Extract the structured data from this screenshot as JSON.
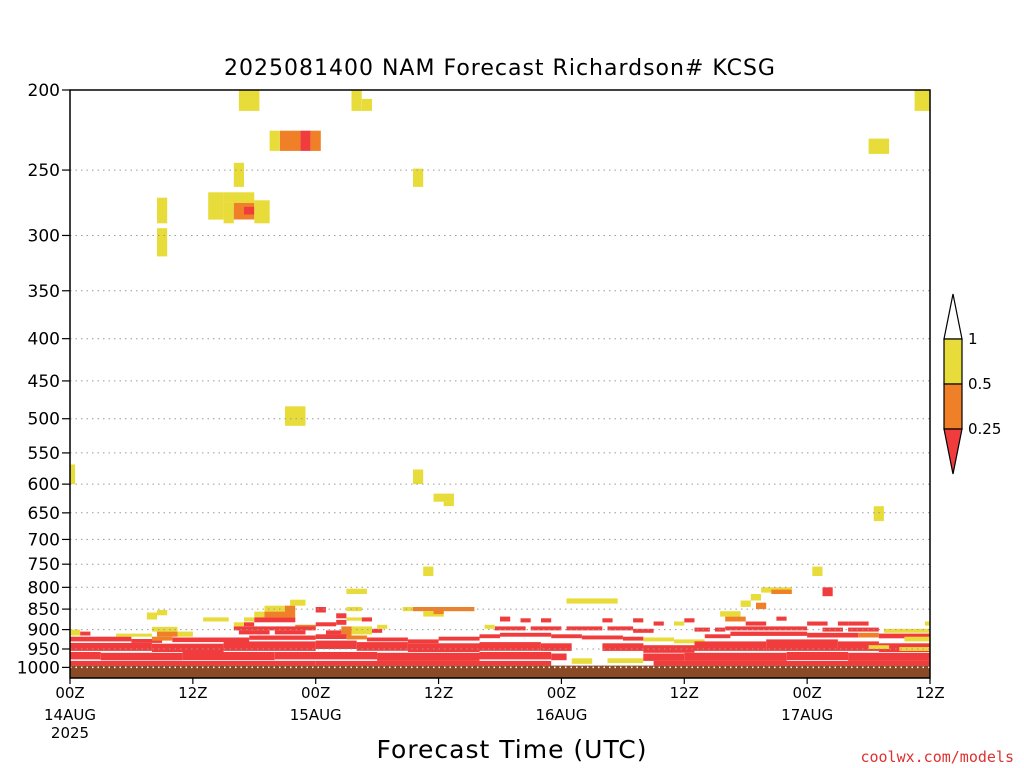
{
  "chart_data": {
    "type": "heatmap",
    "title": "2025081400 NAM Forecast Richardson# KCSG",
    "xlabel": "Forecast Time (UTC)",
    "ylabel": "",
    "x_unit": "forecast hours",
    "xlim": [
      0,
      84
    ],
    "y_unit": "hPa",
    "ylim": [
      1030,
      200
    ],
    "y_scale": "log",
    "grid": true,
    "yticks": [
      200,
      250,
      300,
      350,
      400,
      450,
      500,
      550,
      600,
      650,
      700,
      750,
      800,
      850,
      900,
      950,
      1000
    ],
    "xticks": [
      {
        "x": 0,
        "label": "00Z",
        "date": "14AUG",
        "year": "2025"
      },
      {
        "x": 12,
        "label": "12Z"
      },
      {
        "x": 24,
        "label": "00Z",
        "date": "15AUG"
      },
      {
        "x": 36,
        "label": "12Z"
      },
      {
        "x": 48,
        "label": "00Z",
        "date": "16AUG"
      },
      {
        "x": 60,
        "label": "12Z"
      },
      {
        "x": 72,
        "label": "00Z",
        "date": "17AUG"
      },
      {
        "x": 84,
        "label": "12Z"
      }
    ],
    "colorbar": {
      "levels": [
        "1",
        "0.5",
        "0.25"
      ],
      "bins": [
        {
          "range": "> 1",
          "color": "#ffffff"
        },
        {
          "range": "0.5 - 1",
          "color": "#e8dc3a"
        },
        {
          "range": "0.25 - 0.5",
          "color": "#f08028"
        },
        {
          "range": "< 0.25",
          "color": "#f03c3c"
        }
      ]
    },
    "ground": {
      "p_top": 995,
      "p_bottom": 1030,
      "color": "#8b4a26"
    },
    "cells": [
      {
        "t0": 16.5,
        "t1": 18.5,
        "p0": 200,
        "p1": 212,
        "v": "y"
      },
      {
        "t0": 27.5,
        "t1": 28.5,
        "p0": 200,
        "p1": 212,
        "v": "y"
      },
      {
        "t0": 28.5,
        "t1": 29.5,
        "p0": 205,
        "p1": 212,
        "v": "y"
      },
      {
        "t0": 82.5,
        "t1": 84,
        "p0": 200,
        "p1": 212,
        "v": "y"
      },
      {
        "t0": 19.5,
        "t1": 20.5,
        "p0": 224,
        "p1": 237,
        "v": "y"
      },
      {
        "t0": 20.5,
        "t1": 22.5,
        "p0": 224,
        "p1": 237,
        "v": "o"
      },
      {
        "t0": 22.5,
        "t1": 23.5,
        "p0": 224,
        "p1": 237,
        "v": "r"
      },
      {
        "t0": 23.5,
        "t1": 24.5,
        "p0": 224,
        "p1": 237,
        "v": "o"
      },
      {
        "t0": 78,
        "t1": 80,
        "p0": 229,
        "p1": 239,
        "v": "y"
      },
      {
        "t0": 16,
        "t1": 17,
        "p0": 245,
        "p1": 262,
        "v": "y"
      },
      {
        "t0": 33.5,
        "t1": 34.5,
        "p0": 249,
        "p1": 262,
        "v": "y"
      },
      {
        "t0": 8.5,
        "t1": 9.5,
        "p0": 270,
        "p1": 290,
        "v": "y"
      },
      {
        "t0": 13.5,
        "t1": 15,
        "p0": 266,
        "p1": 287,
        "v": "y"
      },
      {
        "t0": 15,
        "t1": 18,
        "p0": 266,
        "p1": 274,
        "v": "y"
      },
      {
        "t0": 15,
        "t1": 16,
        "p0": 274,
        "p1": 290,
        "v": "y"
      },
      {
        "t0": 16,
        "t1": 18,
        "p0": 274,
        "p1": 287,
        "v": "o"
      },
      {
        "t0": 17,
        "t1": 18,
        "p0": 277,
        "p1": 283,
        "v": "r"
      },
      {
        "t0": 18,
        "t1": 19.5,
        "p0": 272,
        "p1": 290,
        "v": "y"
      },
      {
        "t0": 8.5,
        "t1": 9.5,
        "p0": 294,
        "p1": 318,
        "v": "y"
      },
      {
        "t0": 21,
        "t1": 23,
        "p0": 483,
        "p1": 510,
        "v": "y"
      },
      {
        "t0": 0,
        "t1": 0.5,
        "p0": 568,
        "p1": 600,
        "v": "y"
      },
      {
        "t0": 33.5,
        "t1": 34.5,
        "p0": 576,
        "p1": 600,
        "v": "y"
      },
      {
        "t0": 35.5,
        "t1": 37.5,
        "p0": 616,
        "p1": 630,
        "v": "y"
      },
      {
        "t0": 36.5,
        "t1": 37.5,
        "p0": 630,
        "p1": 638,
        "v": "y"
      },
      {
        "t0": 78.5,
        "t1": 79.5,
        "p0": 638,
        "p1": 665,
        "v": "y"
      },
      {
        "t0": 34.5,
        "t1": 35.5,
        "p0": 755,
        "p1": 775,
        "v": "y"
      },
      {
        "t0": 72.5,
        "t1": 73.5,
        "p0": 755,
        "p1": 775,
        "v": "y"
      },
      {
        "t0": 73.5,
        "t1": 74.5,
        "p0": 800,
        "p1": 820,
        "v": "r"
      },
      {
        "t0": 27,
        "t1": 29,
        "p0": 803,
        "p1": 815,
        "v": "y"
      },
      {
        "t0": 48.5,
        "t1": 53.5,
        "p0": 825,
        "p1": 837,
        "v": "y"
      },
      {
        "t0": 67.5,
        "t1": 70.5,
        "p0": 800,
        "p1": 812,
        "v": "y"
      },
      {
        "t0": 68.5,
        "t1": 70.5,
        "p0": 805,
        "p1": 815,
        "v": "o"
      },
      {
        "t0": 66.5,
        "t1": 67.5,
        "p0": 815,
        "p1": 830,
        "v": "y"
      },
      {
        "t0": 65.5,
        "t1": 66.5,
        "p0": 830,
        "p1": 845,
        "v": "y"
      },
      {
        "t0": 67,
        "t1": 68,
        "p0": 835,
        "p1": 850,
        "v": "o"
      },
      {
        "t0": 21.5,
        "t1": 23,
        "p0": 828,
        "p1": 842,
        "v": "y"
      },
      {
        "t0": 19,
        "t1": 21.5,
        "p0": 842,
        "p1": 856,
        "v": "y"
      },
      {
        "t0": 21,
        "t1": 22,
        "p0": 842,
        "p1": 870,
        "v": "o"
      },
      {
        "t0": 18,
        "t1": 19,
        "p0": 856,
        "p1": 870,
        "v": "y"
      },
      {
        "t0": 19,
        "t1": 21,
        "p0": 856,
        "p1": 870,
        "v": "o"
      },
      {
        "t0": 17,
        "t1": 18,
        "p0": 870,
        "p1": 880,
        "v": "y"
      },
      {
        "t0": 18,
        "t1": 22,
        "p0": 870,
        "p1": 882,
        "v": "r"
      },
      {
        "t0": 27,
        "t1": 28.5,
        "p0": 845,
        "p1": 855,
        "v": "y"
      },
      {
        "t0": 24,
        "t1": 25,
        "p0": 845,
        "p1": 858,
        "v": "r"
      },
      {
        "t0": 26,
        "t1": 27,
        "p0": 860,
        "p1": 872,
        "v": "r"
      },
      {
        "t0": 7.5,
        "t1": 8.5,
        "p0": 858,
        "p1": 875,
        "v": "y"
      },
      {
        "t0": 8.5,
        "t1": 9.5,
        "p0": 852,
        "p1": 865,
        "v": "y"
      },
      {
        "t0": 32.5,
        "t1": 33.5,
        "p0": 845,
        "p1": 855,
        "v": "y"
      },
      {
        "t0": 33.5,
        "t1": 39.5,
        "p0": 845,
        "p1": 855,
        "v": "o"
      },
      {
        "t0": 34.5,
        "t1": 36.5,
        "p0": 855,
        "p1": 868,
        "v": "y"
      },
      {
        "t0": 35.5,
        "t1": 36.5,
        "p0": 852,
        "p1": 862,
        "v": "o"
      },
      {
        "t0": 63.5,
        "t1": 65.5,
        "p0": 855,
        "p1": 868,
        "v": "y"
      },
      {
        "t0": 64,
        "t1": 66,
        "p0": 868,
        "p1": 880,
        "v": "o"
      },
      {
        "t0": 13,
        "t1": 15.5,
        "p0": 870,
        "p1": 880,
        "v": "y"
      },
      {
        "t0": 16,
        "t1": 17,
        "p0": 882,
        "p1": 892,
        "v": "y"
      },
      {
        "t0": 17,
        "t1": 18,
        "p0": 882,
        "p1": 892,
        "v": "r"
      },
      {
        "t0": 22,
        "t1": 24,
        "p0": 888,
        "p1": 898,
        "v": "o"
      },
      {
        "t0": 24,
        "t1": 26,
        "p0": 882,
        "p1": 892,
        "v": "r"
      },
      {
        "t0": 26,
        "t1": 27,
        "p0": 876,
        "p1": 888,
        "v": "r"
      },
      {
        "t0": 27,
        "t1": 28.5,
        "p0": 870,
        "p1": 878,
        "v": "y"
      },
      {
        "t0": 28.5,
        "t1": 29.5,
        "p0": 870,
        "p1": 880,
        "v": "r"
      },
      {
        "t0": 42,
        "t1": 43,
        "p0": 868,
        "p1": 880,
        "v": "r"
      },
      {
        "t0": 44,
        "t1": 45,
        "p0": 872,
        "p1": 882,
        "v": "r"
      },
      {
        "t0": 46,
        "t1": 47,
        "p0": 872,
        "p1": 882,
        "v": "r"
      },
      {
        "t0": 52,
        "t1": 53,
        "p0": 872,
        "p1": 882,
        "v": "r"
      },
      {
        "t0": 55,
        "t1": 56,
        "p0": 872,
        "p1": 882,
        "v": "r"
      },
      {
        "t0": 57,
        "t1": 58,
        "p0": 880,
        "p1": 890,
        "v": "r"
      },
      {
        "t0": 59,
        "t1": 60,
        "p0": 880,
        "p1": 890,
        "v": "y"
      },
      {
        "t0": 60,
        "t1": 61,
        "p0": 872,
        "p1": 882,
        "v": "r"
      },
      {
        "t0": 66,
        "t1": 68,
        "p0": 880,
        "p1": 890,
        "v": "r"
      },
      {
        "t0": 69,
        "t1": 70,
        "p0": 868,
        "p1": 878,
        "v": "r"
      },
      {
        "t0": 72,
        "t1": 74,
        "p0": 880,
        "p1": 890,
        "v": "r"
      },
      {
        "t0": 75,
        "t1": 76,
        "p0": 880,
        "p1": 890,
        "v": "r"
      },
      {
        "t0": 76,
        "t1": 78,
        "p0": 880,
        "p1": 890,
        "v": "r"
      },
      {
        "t0": 83.5,
        "t1": 84,
        "p0": 880,
        "p1": 890,
        "v": "y"
      },
      {
        "t0": 0,
        "t1": 1,
        "p0": 900,
        "p1": 915,
        "v": "y"
      },
      {
        "t0": 1,
        "t1": 2,
        "p0": 905,
        "p1": 915,
        "v": "r"
      },
      {
        "t0": 8,
        "t1": 10.5,
        "p0": 893,
        "p1": 905,
        "v": "y"
      },
      {
        "t0": 8.5,
        "t1": 10.5,
        "p0": 905,
        "p1": 918,
        "v": "o"
      },
      {
        "t0": 10.5,
        "t1": 12,
        "p0": 905,
        "p1": 918,
        "v": "y"
      },
      {
        "t0": 4.5,
        "t1": 8,
        "p0": 910,
        "p1": 918,
        "v": "y"
      },
      {
        "t0": 16,
        "t1": 24,
        "p0": 892,
        "p1": 902,
        "v": "r"
      },
      {
        "t0": 16.5,
        "t1": 19.5,
        "p0": 902,
        "p1": 912,
        "v": "r"
      },
      {
        "t0": 20,
        "t1": 23,
        "p0": 902,
        "p1": 912,
        "v": "r"
      },
      {
        "t0": 25,
        "t1": 26.5,
        "p0": 902,
        "p1": 912,
        "v": "r"
      },
      {
        "t0": 26.5,
        "t1": 27.5,
        "p0": 892,
        "p1": 918,
        "v": "o"
      },
      {
        "t0": 27.5,
        "t1": 29.5,
        "p0": 892,
        "p1": 912,
        "v": "y"
      },
      {
        "t0": 29.5,
        "t1": 30.5,
        "p0": 898,
        "p1": 908,
        "v": "r"
      },
      {
        "t0": 30,
        "t1": 31,
        "p0": 888,
        "p1": 898,
        "v": "y"
      },
      {
        "t0": 40.5,
        "t1": 41.5,
        "p0": 888,
        "p1": 898,
        "v": "y"
      },
      {
        "t0": 41.5,
        "t1": 44.5,
        "p0": 892,
        "p1": 902,
        "v": "r"
      },
      {
        "t0": 45,
        "t1": 48,
        "p0": 892,
        "p1": 902,
        "v": "r"
      },
      {
        "t0": 48.5,
        "t1": 52,
        "p0": 892,
        "p1": 902,
        "v": "r"
      },
      {
        "t0": 52.5,
        "t1": 55,
        "p0": 892,
        "p1": 902,
        "v": "r"
      },
      {
        "t0": 55,
        "t1": 57,
        "p0": 898,
        "p1": 908,
        "v": "r"
      },
      {
        "t0": 61,
        "t1": 62.5,
        "p0": 895,
        "p1": 905,
        "v": "r"
      },
      {
        "t0": 63,
        "t1": 64,
        "p0": 895,
        "p1": 905,
        "v": "r"
      },
      {
        "t0": 64,
        "t1": 72,
        "p0": 892,
        "p1": 902,
        "v": "r"
      },
      {
        "t0": 73.5,
        "t1": 75.5,
        "p0": 895,
        "p1": 905,
        "v": "r"
      },
      {
        "t0": 76,
        "t1": 79,
        "p0": 895,
        "p1": 905,
        "v": "r"
      },
      {
        "t0": 79.5,
        "t1": 84,
        "p0": 898,
        "p1": 908,
        "v": "y"
      },
      {
        "t0": 0,
        "t1": 6,
        "p0": 918,
        "p1": 930,
        "v": "r"
      },
      {
        "t0": 6,
        "t1": 9,
        "p0": 924,
        "p1": 934,
        "v": "r"
      },
      {
        "t0": 8,
        "t1": 10,
        "p0": 918,
        "p1": 928,
        "v": "o"
      },
      {
        "t0": 10,
        "t1": 17.5,
        "p0": 920,
        "p1": 932,
        "v": "r"
      },
      {
        "t0": 17.5,
        "t1": 24,
        "p0": 915,
        "p1": 926,
        "v": "r"
      },
      {
        "t0": 24,
        "t1": 27,
        "p0": 912,
        "p1": 924,
        "v": "r"
      },
      {
        "t0": 27,
        "t1": 29,
        "p0": 915,
        "p1": 925,
        "v": "o"
      },
      {
        "t0": 29,
        "t1": 33,
        "p0": 920,
        "p1": 930,
        "v": "r"
      },
      {
        "t0": 33,
        "t1": 36,
        "p0": 925,
        "p1": 935,
        "v": "r"
      },
      {
        "t0": 36,
        "t1": 40,
        "p0": 918,
        "p1": 928,
        "v": "r"
      },
      {
        "t0": 40,
        "t1": 42,
        "p0": 912,
        "p1": 922,
        "v": "r"
      },
      {
        "t0": 42,
        "t1": 47,
        "p0": 908,
        "p1": 918,
        "v": "r"
      },
      {
        "t0": 47,
        "t1": 50,
        "p0": 912,
        "p1": 922,
        "v": "r"
      },
      {
        "t0": 50,
        "t1": 54,
        "p0": 915,
        "p1": 925,
        "v": "r"
      },
      {
        "t0": 54,
        "t1": 56,
        "p0": 918,
        "p1": 928,
        "v": "r"
      },
      {
        "t0": 56,
        "t1": 59,
        "p0": 920,
        "p1": 930,
        "v": "y"
      },
      {
        "t0": 59,
        "t1": 62,
        "p0": 925,
        "p1": 935,
        "v": "y"
      },
      {
        "t0": 62,
        "t1": 64.5,
        "p0": 912,
        "p1": 922,
        "v": "r"
      },
      {
        "t0": 64.5,
        "t1": 72,
        "p0": 905,
        "p1": 916,
        "v": "r"
      },
      {
        "t0": 72,
        "t1": 77,
        "p0": 908,
        "p1": 920,
        "v": "r"
      },
      {
        "t0": 77,
        "t1": 79,
        "p0": 908,
        "p1": 920,
        "v": "o"
      },
      {
        "t0": 79,
        "t1": 84,
        "p0": 910,
        "p1": 922,
        "v": "r"
      },
      {
        "t0": 81.5,
        "t1": 84,
        "p0": 918,
        "p1": 930,
        "v": "y"
      },
      {
        "t0": 0,
        "t1": 8,
        "p0": 934,
        "p1": 955,
        "v": "r"
      },
      {
        "t0": 8,
        "t1": 15,
        "p0": 936,
        "p1": 958,
        "v": "r"
      },
      {
        "t0": 15,
        "t1": 24,
        "p0": 930,
        "p1": 955,
        "v": "r"
      },
      {
        "t0": 24,
        "t1": 28,
        "p0": 928,
        "p1": 950,
        "v": "r"
      },
      {
        "t0": 28,
        "t1": 33,
        "p0": 932,
        "p1": 955,
        "v": "r"
      },
      {
        "t0": 33,
        "t1": 40,
        "p0": 935,
        "p1": 958,
        "v": "r"
      },
      {
        "t0": 40,
        "t1": 46,
        "p0": 932,
        "p1": 955,
        "v": "r"
      },
      {
        "t0": 46,
        "t1": 49,
        "p0": 935,
        "p1": 955,
        "v": "r"
      },
      {
        "t0": 52,
        "t1": 56,
        "p0": 935,
        "p1": 955,
        "v": "r"
      },
      {
        "t0": 56,
        "t1": 61,
        "p0": 940,
        "p1": 960,
        "v": "r"
      },
      {
        "t0": 61,
        "t1": 68,
        "p0": 930,
        "p1": 955,
        "v": "r"
      },
      {
        "t0": 68,
        "t1": 75,
        "p0": 925,
        "p1": 955,
        "v": "r"
      },
      {
        "t0": 75,
        "t1": 79,
        "p0": 930,
        "p1": 955,
        "v": "r"
      },
      {
        "t0": 79,
        "t1": 84,
        "p0": 935,
        "p1": 958,
        "v": "r"
      },
      {
        "t0": 78,
        "t1": 80,
        "p0": 940,
        "p1": 950,
        "v": "y"
      },
      {
        "t0": 81,
        "t1": 84,
        "p0": 945,
        "p1": 955,
        "v": "y"
      },
      {
        "t0": 49,
        "t1": 51,
        "p0": 975,
        "p1": 990,
        "v": "y"
      },
      {
        "t0": 52.5,
        "t1": 56,
        "p0": 975,
        "p1": 988,
        "v": "y"
      },
      {
        "t0": 0,
        "t1": 3,
        "p0": 958,
        "p1": 978,
        "v": "r"
      },
      {
        "t0": 3,
        "t1": 11,
        "p0": 960,
        "p1": 980,
        "v": "r"
      },
      {
        "t0": 11,
        "t1": 20,
        "p0": 958,
        "p1": 980,
        "v": "r"
      },
      {
        "t0": 20,
        "t1": 30,
        "p0": 958,
        "p1": 978,
        "v": "r"
      },
      {
        "t0": 30,
        "t1": 40,
        "p0": 960,
        "p1": 982,
        "v": "r"
      },
      {
        "t0": 40,
        "t1": 47,
        "p0": 958,
        "p1": 978,
        "v": "r"
      },
      {
        "t0": 47,
        "t1": 48.5,
        "p0": 962,
        "p1": 980,
        "v": "r"
      },
      {
        "t0": 56,
        "t1": 60,
        "p0": 962,
        "p1": 982,
        "v": "r"
      },
      {
        "t0": 60,
        "t1": 70,
        "p0": 960,
        "p1": 982,
        "v": "r"
      },
      {
        "t0": 70,
        "t1": 76,
        "p0": 958,
        "p1": 980,
        "v": "r"
      },
      {
        "t0": 76,
        "t1": 84,
        "p0": 960,
        "p1": 982,
        "v": "r"
      },
      {
        "t0": 0,
        "t1": 24,
        "p0": 982,
        "p1": 995,
        "v": "r"
      },
      {
        "t0": 24,
        "t1": 47,
        "p0": 982,
        "p1": 995,
        "v": "r"
      },
      {
        "t0": 57,
        "t1": 84,
        "p0": 982,
        "p1": 995,
        "v": "r"
      }
    ]
  },
  "credit": "coolwx.com/models"
}
